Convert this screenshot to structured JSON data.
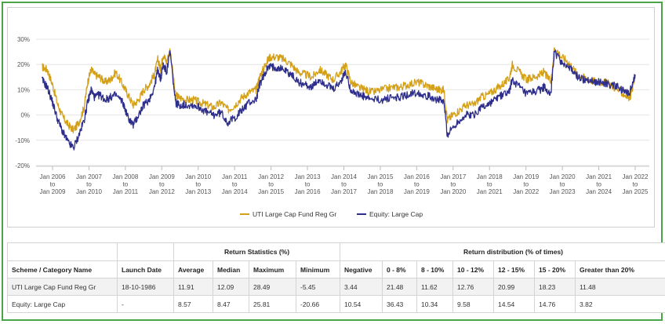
{
  "chart_data": {
    "type": "line",
    "ylim": [
      -20,
      30
    ],
    "yticks": [
      "30%",
      "20%",
      "10%",
      "0%",
      "-10%",
      "-20%"
    ],
    "ytick_values": [
      30,
      20,
      10,
      0,
      -10,
      -20
    ],
    "xticks": [
      [
        "Jan 2006",
        "to",
        "Jan 2009"
      ],
      [
        "Jan 2007",
        "to",
        "Jan 2010"
      ],
      [
        "Jan 2008",
        "to",
        "Jan 2011"
      ],
      [
        "Jan 2009",
        "to",
        "Jan 2012"
      ],
      [
        "Jan 2010",
        "to",
        "Jan 2013"
      ],
      [
        "Jan 2011",
        "to",
        "Jan 2014"
      ],
      [
        "Jan 2012",
        "to",
        "Jan 2015"
      ],
      [
        "Jan 2013",
        "to",
        "Jan 2016"
      ],
      [
        "Jan 2014",
        "to",
        "Jan 2017"
      ],
      [
        "Jan 2015",
        "to",
        "Jan 2018"
      ],
      [
        "Jan 2016",
        "to",
        "Jan 2019"
      ],
      [
        "Jan 2017",
        "to",
        "Jan 2020"
      ],
      [
        "Jan 2018",
        "to",
        "Jan 2021"
      ],
      [
        "Jan 2019",
        "to",
        "Jan 2022"
      ],
      [
        "Jan 2020",
        "to",
        "Jan 2023"
      ],
      [
        "Jan 2021",
        "to",
        "Jan 2024"
      ],
      [
        "Jan 2022",
        "to",
        "Jan 2025"
      ]
    ],
    "x_start": 2006.0,
    "x_end": 2022.6,
    "series": [
      {
        "name": "UTI Large Cap Fund Reg Gr",
        "color": "#d4a017",
        "points": [
          [
            2005.7,
            19
          ],
          [
            2005.85,
            18
          ],
          [
            2006.0,
            12
          ],
          [
            2006.15,
            4
          ],
          [
            2006.3,
            -1
          ],
          [
            2006.45,
            -4
          ],
          [
            2006.6,
            -6
          ],
          [
            2006.75,
            -3
          ],
          [
            2006.9,
            3
          ],
          [
            2007.0,
            13
          ],
          [
            2007.1,
            18
          ],
          [
            2007.2,
            16
          ],
          [
            2007.35,
            15
          ],
          [
            2007.5,
            13
          ],
          [
            2007.65,
            14
          ],
          [
            2007.8,
            17
          ],
          [
            2008.0,
            12
          ],
          [
            2008.15,
            8
          ],
          [
            2008.3,
            4
          ],
          [
            2008.45,
            6
          ],
          [
            2008.6,
            10
          ],
          [
            2008.75,
            12
          ],
          [
            2008.9,
            16
          ],
          [
            2009.0,
            22
          ],
          [
            2009.08,
            18
          ],
          [
            2009.15,
            24
          ],
          [
            2009.25,
            21
          ],
          [
            2009.35,
            26
          ],
          [
            2009.5,
            8
          ],
          [
            2009.6,
            7
          ],
          [
            2009.8,
            6
          ],
          [
            2010.0,
            6
          ],
          [
            2010.2,
            5
          ],
          [
            2010.4,
            4
          ],
          [
            2010.6,
            3
          ],
          [
            2010.8,
            5
          ],
          [
            2011.0,
            2
          ],
          [
            2011.2,
            4
          ],
          [
            2011.4,
            7
          ],
          [
            2011.6,
            9
          ],
          [
            2011.8,
            10
          ],
          [
            2011.9,
            15
          ],
          [
            2012.0,
            18
          ],
          [
            2012.1,
            21
          ],
          [
            2012.2,
            23
          ],
          [
            2012.4,
            23
          ],
          [
            2012.6,
            22
          ],
          [
            2012.8,
            20
          ],
          [
            2013.0,
            17
          ],
          [
            2013.2,
            16
          ],
          [
            2013.4,
            15
          ],
          [
            2013.6,
            18
          ],
          [
            2013.8,
            16
          ],
          [
            2014.0,
            14
          ],
          [
            2014.2,
            17
          ],
          [
            2014.35,
            20
          ],
          [
            2014.5,
            13
          ],
          [
            2014.7,
            11
          ],
          [
            2014.9,
            10
          ],
          [
            2015.1,
            9
          ],
          [
            2015.4,
            10
          ],
          [
            2015.7,
            11
          ],
          [
            2015.9,
            11
          ],
          [
            2016.1,
            12
          ],
          [
            2016.4,
            13
          ],
          [
            2016.6,
            12
          ],
          [
            2016.8,
            11
          ],
          [
            2017.0,
            10
          ],
          [
            2017.15,
            10
          ],
          [
            2017.25,
            -2
          ],
          [
            2017.4,
            0
          ],
          [
            2017.6,
            2
          ],
          [
            2017.8,
            4
          ],
          [
            2018.0,
            4
          ],
          [
            2018.2,
            7
          ],
          [
            2018.4,
            8
          ],
          [
            2018.6,
            10
          ],
          [
            2018.8,
            12
          ],
          [
            2019.0,
            14
          ],
          [
            2019.1,
            20
          ],
          [
            2019.3,
            17
          ],
          [
            2019.5,
            14
          ],
          [
            2019.7,
            15
          ],
          [
            2019.9,
            16
          ],
          [
            2020.0,
            17
          ],
          [
            2020.2,
            13
          ],
          [
            2020.3,
            27
          ],
          [
            2020.5,
            23
          ],
          [
            2020.7,
            21
          ],
          [
            2020.9,
            17
          ],
          [
            2021.1,
            15
          ],
          [
            2021.3,
            14
          ],
          [
            2021.5,
            13
          ],
          [
            2021.7,
            13
          ],
          [
            2021.9,
            12
          ],
          [
            2022.1,
            10
          ],
          [
            2022.3,
            8
          ],
          [
            2022.45,
            7
          ],
          [
            2022.6,
            15
          ]
        ]
      },
      {
        "name": "Equity: Large Cap",
        "color": "#2e2e8c",
        "points": [
          [
            2005.7,
            14
          ],
          [
            2005.85,
            11
          ],
          [
            2006.0,
            5
          ],
          [
            2006.15,
            -2
          ],
          [
            2006.3,
            -7
          ],
          [
            2006.45,
            -11
          ],
          [
            2006.6,
            -13
          ],
          [
            2006.75,
            -8
          ],
          [
            2006.9,
            -2
          ],
          [
            2007.0,
            5
          ],
          [
            2007.1,
            10
          ],
          [
            2007.2,
            7
          ],
          [
            2007.35,
            8
          ],
          [
            2007.5,
            6
          ],
          [
            2007.65,
            7
          ],
          [
            2007.8,
            8
          ],
          [
            2008.0,
            5
          ],
          [
            2008.15,
            -1
          ],
          [
            2008.3,
            -4
          ],
          [
            2008.45,
            0
          ],
          [
            2008.6,
            4
          ],
          [
            2008.75,
            6
          ],
          [
            2008.9,
            11
          ],
          [
            2009.0,
            18
          ],
          [
            2009.08,
            14
          ],
          [
            2009.15,
            20
          ],
          [
            2009.25,
            17
          ],
          [
            2009.35,
            25
          ],
          [
            2009.5,
            5
          ],
          [
            2009.6,
            4
          ],
          [
            2009.8,
            4
          ],
          [
            2010.0,
            4
          ],
          [
            2010.2,
            3
          ],
          [
            2010.4,
            1
          ],
          [
            2010.6,
            0
          ],
          [
            2010.8,
            1
          ],
          [
            2011.0,
            -3
          ],
          [
            2011.2,
            -1
          ],
          [
            2011.4,
            2
          ],
          [
            2011.6,
            5
          ],
          [
            2011.8,
            6
          ],
          [
            2011.9,
            12
          ],
          [
            2012.0,
            15
          ],
          [
            2012.1,
            18
          ],
          [
            2012.2,
            19
          ],
          [
            2012.4,
            19
          ],
          [
            2012.6,
            18
          ],
          [
            2012.8,
            16
          ],
          [
            2013.0,
            13
          ],
          [
            2013.2,
            12
          ],
          [
            2013.4,
            11
          ],
          [
            2013.6,
            14
          ],
          [
            2013.8,
            12
          ],
          [
            2014.0,
            10
          ],
          [
            2014.2,
            13
          ],
          [
            2014.35,
            17
          ],
          [
            2014.5,
            10
          ],
          [
            2014.7,
            8
          ],
          [
            2014.9,
            7
          ],
          [
            2015.1,
            6
          ],
          [
            2015.4,
            6
          ],
          [
            2015.7,
            7
          ],
          [
            2015.9,
            7
          ],
          [
            2016.1,
            8
          ],
          [
            2016.4,
            9
          ],
          [
            2016.6,
            8
          ],
          [
            2016.8,
            7
          ],
          [
            2017.0,
            6
          ],
          [
            2017.15,
            5
          ],
          [
            2017.25,
            -8
          ],
          [
            2017.4,
            -5
          ],
          [
            2017.6,
            -2
          ],
          [
            2017.8,
            0
          ],
          [
            2018.0,
            0
          ],
          [
            2018.2,
            3
          ],
          [
            2018.4,
            4
          ],
          [
            2018.6,
            6
          ],
          [
            2018.8,
            8
          ],
          [
            2019.0,
            9
          ],
          [
            2019.1,
            14
          ],
          [
            2019.3,
            11
          ],
          [
            2019.5,
            8
          ],
          [
            2019.7,
            9
          ],
          [
            2019.9,
            10
          ],
          [
            2020.0,
            11
          ],
          [
            2020.2,
            9
          ],
          [
            2020.3,
            25
          ],
          [
            2020.5,
            21
          ],
          [
            2020.7,
            19
          ],
          [
            2020.9,
            16
          ],
          [
            2021.1,
            14
          ],
          [
            2021.3,
            14
          ],
          [
            2021.5,
            13
          ],
          [
            2021.7,
            13
          ],
          [
            2021.9,
            12
          ],
          [
            2022.1,
            11
          ],
          [
            2022.3,
            9
          ],
          [
            2022.45,
            9
          ],
          [
            2022.6,
            16
          ]
        ]
      }
    ]
  },
  "table": {
    "group_headers": [
      "Return Statistics (%)",
      "Return distribution (% of times)"
    ],
    "columns": [
      "Scheme / Category Name",
      "Launch Date",
      "Average",
      "Median",
      "Maximum",
      "Minimum",
      "Negative",
      "0 - 8%",
      "8 - 10%",
      "10 - 12%",
      "12 - 15%",
      "15 - 20%",
      "Greater than 20%"
    ],
    "rows": [
      [
        "UTI Large Cap Fund Reg Gr",
        "18-10-1986",
        "11.91",
        "12.09",
        "28.49",
        "-5.45",
        "3.44",
        "21.48",
        "11.62",
        "12.76",
        "20.99",
        "18.23",
        "11.48"
      ],
      [
        "Equity: Large Cap",
        "-",
        "8.57",
        "8.47",
        "25.81",
        "-20.66",
        "10.54",
        "36.43",
        "10.34",
        "9.58",
        "14.54",
        "14.76",
        "3.82"
      ]
    ]
  }
}
